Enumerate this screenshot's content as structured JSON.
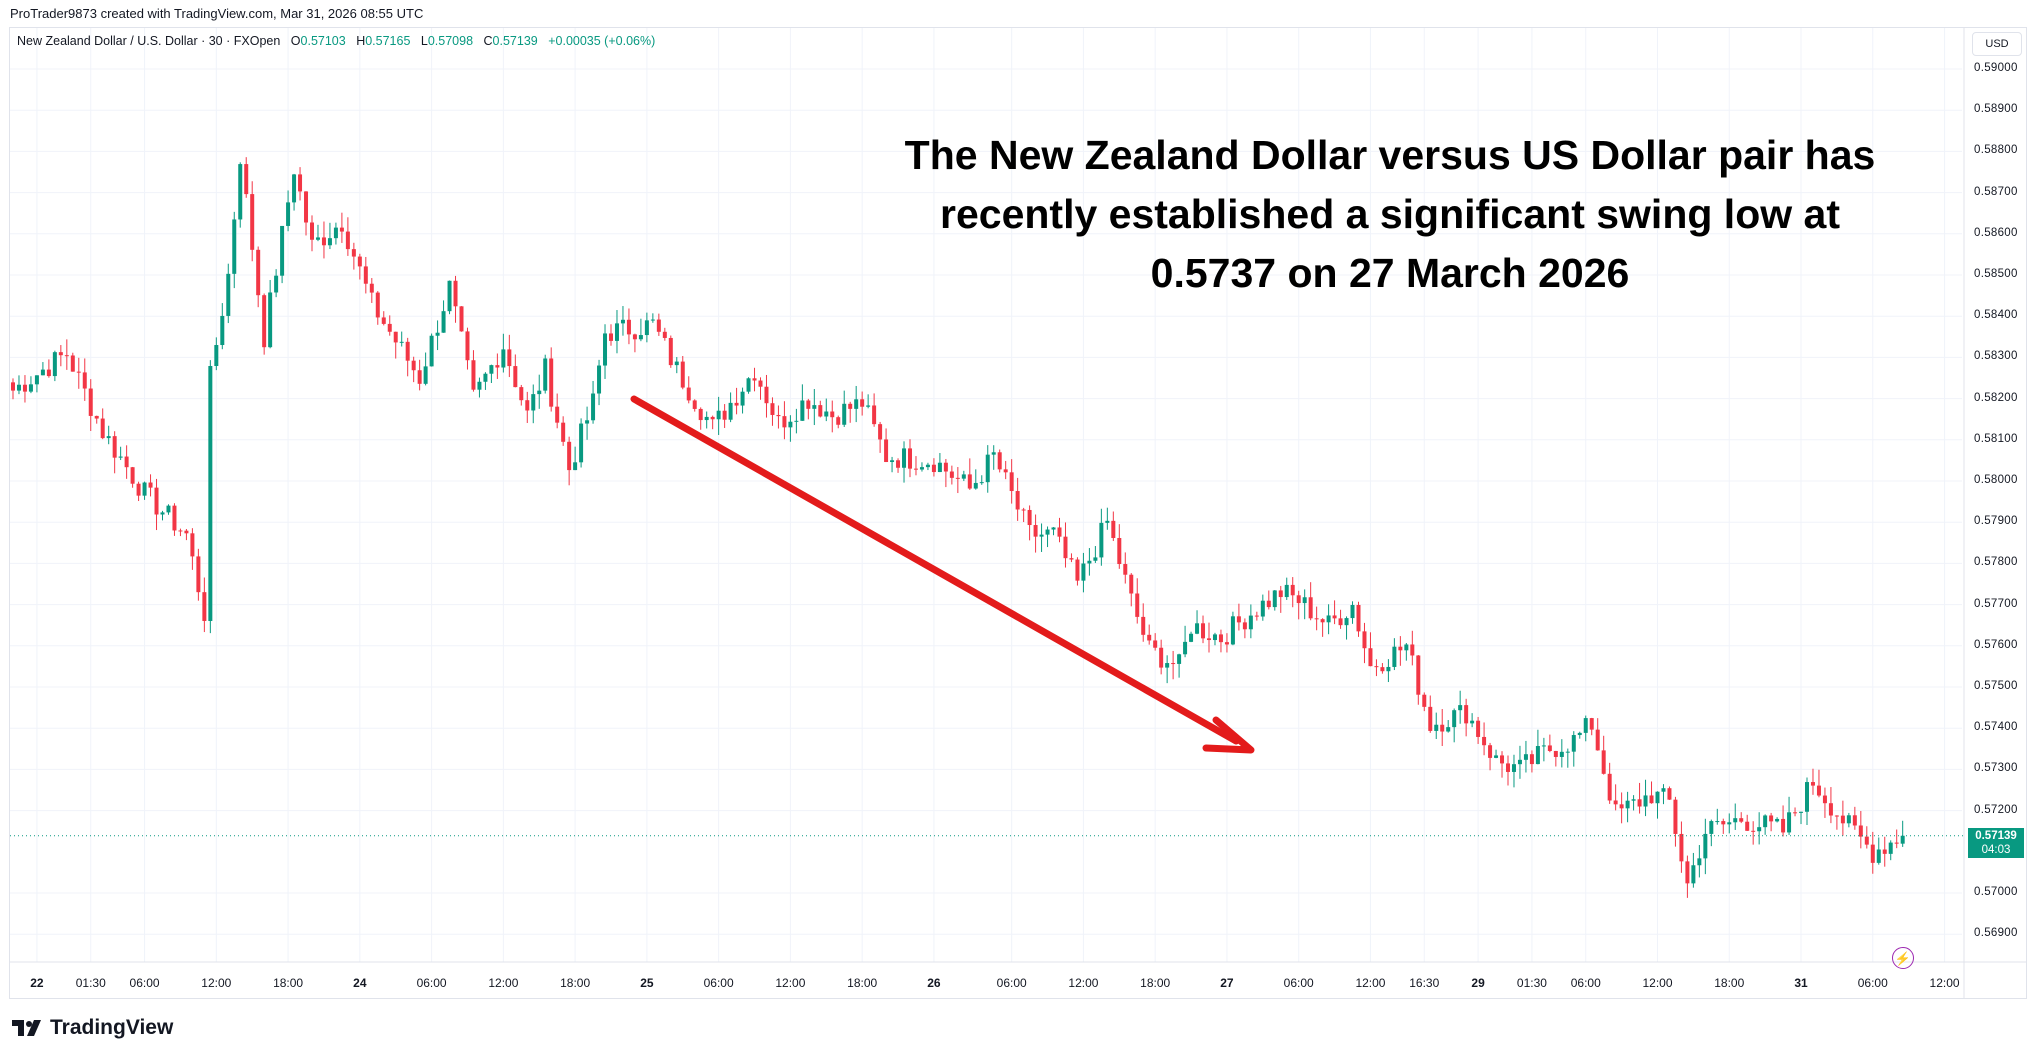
{
  "credit": "ProTrader9873 created with TradingView.com, Mar 31, 2026 08:55 UTC",
  "legend": {
    "symbol": "New Zealand Dollar / U.S. Dollar · 30 · FXOpen",
    "open_label": "O",
    "open": "0.57103",
    "high_label": "H",
    "high": "0.57165",
    "low_label": "L",
    "low": "0.57098",
    "close_label": "C",
    "close": "0.57139",
    "change": "+0.00035 (+0.06%)"
  },
  "currency": "USD",
  "price_ticks": [
    "0.59000",
    "0.58900",
    "0.58800",
    "0.58700",
    "0.58600",
    "0.58500",
    "0.58400",
    "0.58300",
    "0.58200",
    "0.58100",
    "0.58000",
    "0.57900",
    "0.57800",
    "0.57700",
    "0.57600",
    "0.57500",
    "0.57400",
    "0.57300",
    "0.57200",
    "0.57000",
    "0.56900"
  ],
  "current_price": {
    "value": "0.57139",
    "countdown": "04:03"
  },
  "time_ticks": [
    {
      "label": "22",
      "bold": true,
      "bar": 4
    },
    {
      "label": "01:30",
      "bar": 13
    },
    {
      "label": "06:00",
      "bar": 22
    },
    {
      "label": "12:00",
      "bar": 34
    },
    {
      "label": "18:00",
      "bar": 46
    },
    {
      "label": "24",
      "bold": true,
      "bar": 58
    },
    {
      "label": "06:00",
      "bar": 70
    },
    {
      "label": "12:00",
      "bar": 82
    },
    {
      "label": "18:00",
      "bar": 94
    },
    {
      "label": "25",
      "bold": true,
      "bar": 106
    },
    {
      "label": "06:00",
      "bar": 118
    },
    {
      "label": "12:00",
      "bar": 130
    },
    {
      "label": "18:00",
      "bar": 142
    },
    {
      "label": "26",
      "bold": true,
      "bar": 154
    },
    {
      "label": "06:00",
      "bar": 167
    },
    {
      "label": "12:00",
      "bar": 179
    },
    {
      "label": "18:00",
      "bar": 191
    },
    {
      "label": "27",
      "bold": true,
      "bar": 203
    },
    {
      "label": "06:00",
      "bar": 215
    },
    {
      "label": "12:00",
      "bar": 227
    },
    {
      "label": "16:30",
      "bar": 236
    },
    {
      "label": "29",
      "bold": true,
      "bar": 245
    },
    {
      "label": "01:30",
      "bar": 254
    },
    {
      "label": "06:00",
      "bar": 263
    },
    {
      "label": "12:00",
      "bar": 275
    },
    {
      "label": "18:00",
      "bar": 287
    },
    {
      "label": "31",
      "bold": true,
      "bar": 299
    },
    {
      "label": "06:00",
      "bar": 311
    },
    {
      "label": "12:00",
      "bar": 323
    }
  ],
  "annotation": [
    "The New Zealand Dollar versus US Dollar pair has",
    "recently established a significant swing low at",
    "0.5737 on 27 March 2026"
  ],
  "brand": "TradingView",
  "colors": {
    "up": "#089981",
    "down": "#f23645",
    "arrow": "#e31b1b",
    "grid": "#f0f3fa"
  },
  "chart_data": {
    "type": "candlestick",
    "interval": "30",
    "ylim": [
      0.5685,
      0.591
    ],
    "close_path": [
      [
        0,
        0.5822
      ],
      [
        9,
        0.5831
      ],
      [
        15,
        0.5812
      ],
      [
        22,
        0.5797
      ],
      [
        29,
        0.5787
      ],
      [
        32,
        0.5768
      ],
      [
        33,
        0.5825
      ],
      [
        36,
        0.585
      ],
      [
        38,
        0.5879
      ],
      [
        42,
        0.5835
      ],
      [
        47,
        0.5876
      ],
      [
        50,
        0.5857
      ],
      [
        55,
        0.5863
      ],
      [
        60,
        0.5843
      ],
      [
        68,
        0.5825
      ],
      [
        73,
        0.5847
      ],
      [
        77,
        0.582
      ],
      [
        82,
        0.5833
      ],
      [
        86,
        0.5816
      ],
      [
        89,
        0.5827
      ],
      [
        93,
        0.5803
      ],
      [
        97,
        0.5819
      ],
      [
        99,
        0.5836
      ],
      [
        107,
        0.5838
      ],
      [
        111,
        0.5827
      ],
      [
        117,
        0.5813
      ],
      [
        124,
        0.5827
      ],
      [
        128,
        0.5814
      ],
      [
        133,
        0.582
      ],
      [
        137,
        0.5816
      ],
      [
        142,
        0.5819
      ],
      [
        146,
        0.5806
      ],
      [
        154,
        0.5805
      ],
      [
        160,
        0.5798
      ],
      [
        164,
        0.5806
      ],
      [
        170,
        0.5787
      ],
      [
        174,
        0.5787
      ],
      [
        178,
        0.5775
      ],
      [
        183,
        0.579
      ],
      [
        187,
        0.5771
      ],
      [
        190,
        0.5759
      ],
      [
        195,
        0.5755
      ],
      [
        197,
        0.5765
      ],
      [
        202,
        0.5762
      ],
      [
        207,
        0.5768
      ],
      [
        212,
        0.5773
      ],
      [
        215,
        0.5771
      ],
      [
        220,
        0.5765
      ],
      [
        224,
        0.577
      ],
      [
        227,
        0.5755
      ],
      [
        233,
        0.576
      ],
      [
        237,
        0.5741
      ],
      [
        243,
        0.5744
      ],
      [
        248,
        0.5732
      ],
      [
        252,
        0.573
      ],
      [
        257,
        0.5735
      ],
      [
        261,
        0.5737
      ],
      [
        264,
        0.5741
      ],
      [
        268,
        0.5719
      ],
      [
        274,
        0.5724
      ],
      [
        277,
        0.5722
      ],
      [
        280,
        0.5702
      ],
      [
        283,
        0.5715
      ],
      [
        289,
        0.5718
      ],
      [
        296,
        0.5715
      ],
      [
        301,
        0.5727
      ],
      [
        307,
        0.5716
      ],
      [
        311,
        0.571
      ],
      [
        316,
        0.57139
      ]
    ]
  }
}
